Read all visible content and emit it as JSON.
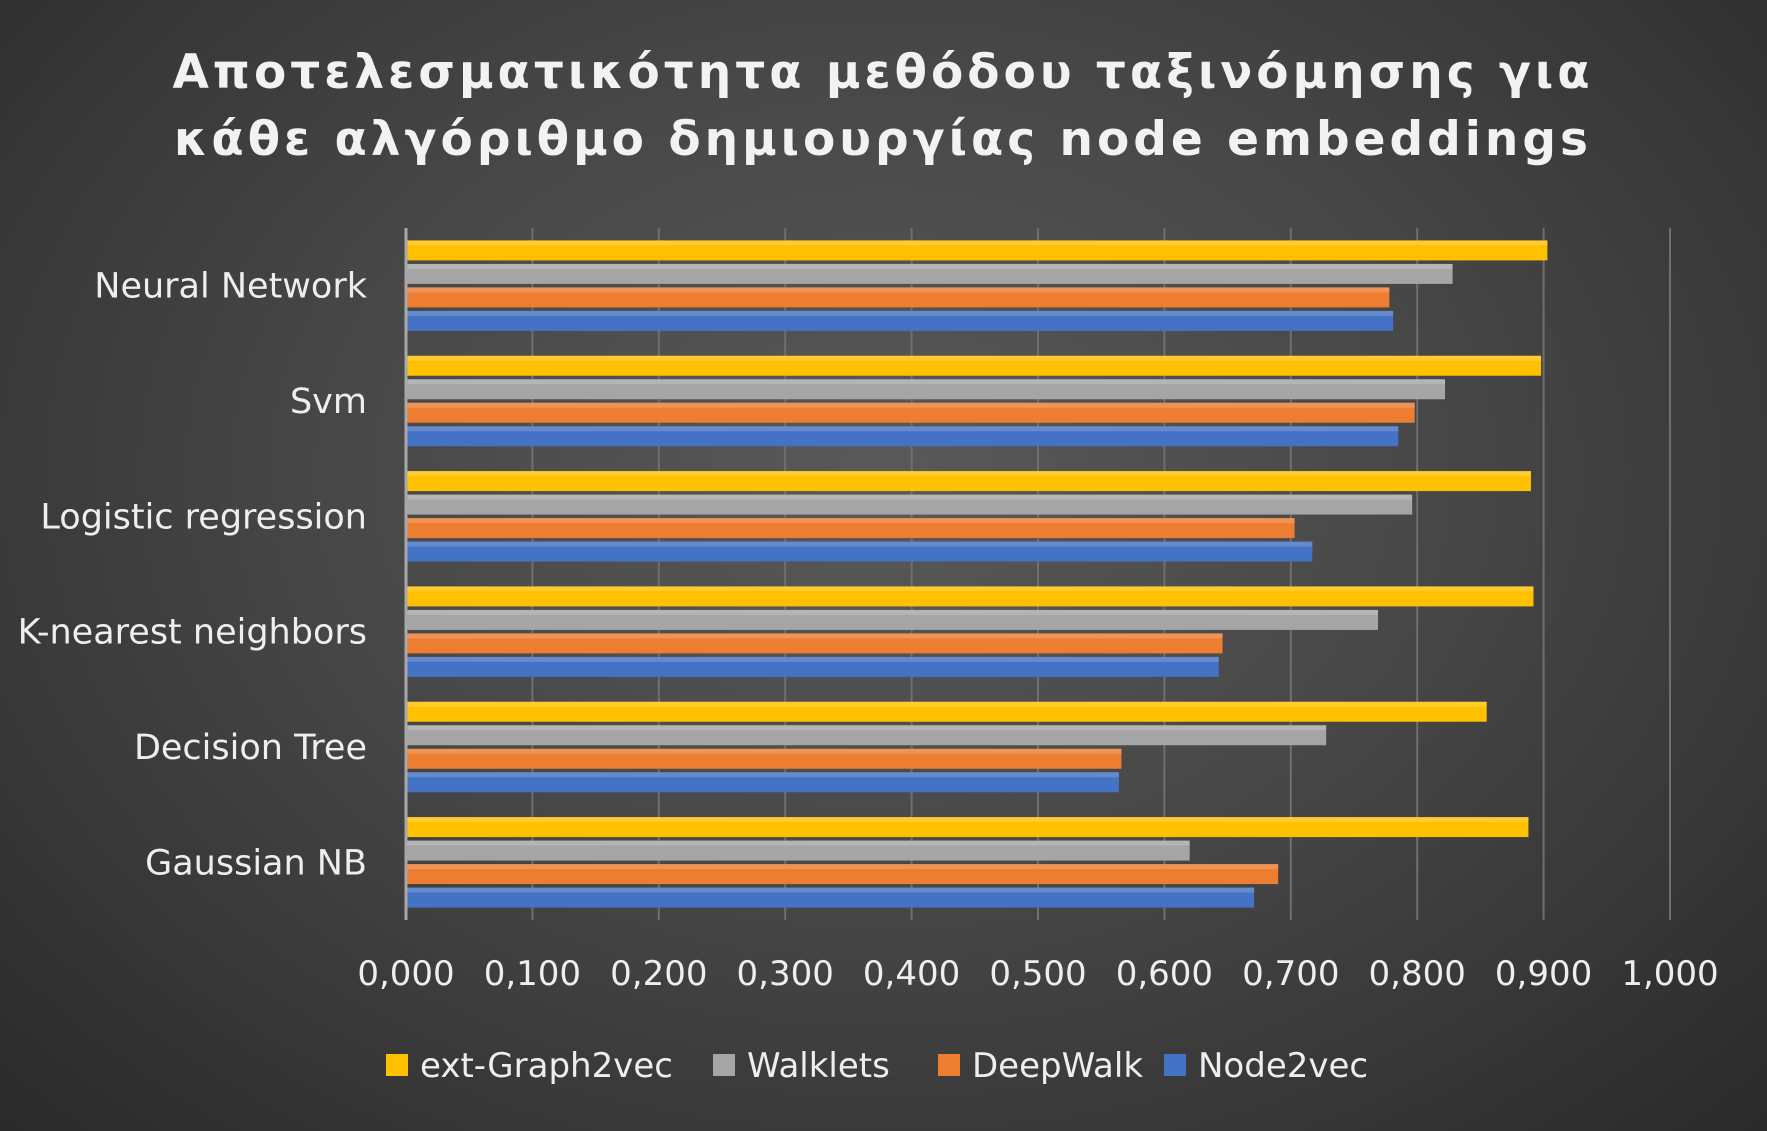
{
  "chart_data": {
    "type": "bar",
    "orientation": "horizontal",
    "title": "Αποτελεσματικότητα μεθόδου ταξινόμησης για κάθε αλγόριθμο δημιουργίας node embeddings",
    "title_lines": [
      "Αποτελεσματικότητα μεθόδου ταξινόμησης για",
      "κάθε αλγόριθμο δημιουργίας node embeddings"
    ],
    "xlabel": "",
    "ylabel": "",
    "xlim": [
      0,
      1
    ],
    "ticks": [
      0,
      0.1,
      0.2,
      0.3,
      0.4,
      0.5,
      0.6,
      0.7,
      0.8,
      0.9,
      1.0
    ],
    "tick_labels": [
      "0,000",
      "0,100",
      "0,200",
      "0,300",
      "0,400",
      "0,500",
      "0,600",
      "0,700",
      "0,800",
      "0,900",
      "1,000"
    ],
    "grid": true,
    "legend_position": "bottom",
    "categories": [
      "Neural Network",
      "Svm",
      "Logistic regression",
      "K-nearest neighbors",
      "Decision Tree",
      "Gaussian NB"
    ],
    "series": [
      {
        "name": "ext-Graph2vec",
        "color": "#ffc000",
        "values": [
          0.903,
          0.898,
          0.89,
          0.892,
          0.855,
          0.888
        ]
      },
      {
        "name": "Walklets",
        "color": "#a5a5a5",
        "values": [
          0.828,
          0.822,
          0.796,
          0.769,
          0.728,
          0.62
        ]
      },
      {
        "name": "DeepWalk",
        "color": "#ed7d31",
        "values": [
          0.778,
          0.798,
          0.703,
          0.646,
          0.566,
          0.69
        ]
      },
      {
        "name": "Node2vec",
        "color": "#4472c4",
        "values": [
          0.781,
          0.785,
          0.717,
          0.643,
          0.564,
          0.671
        ]
      }
    ]
  }
}
